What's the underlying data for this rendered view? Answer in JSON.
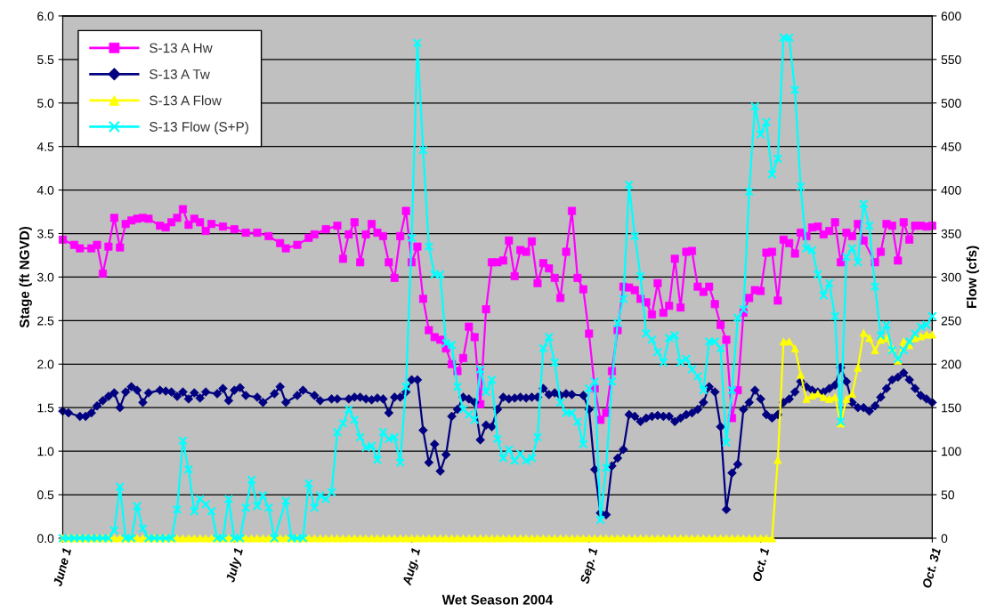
{
  "chart_data": {
    "type": "line",
    "xlabel": "Wet Season 2004",
    "ylabel": "Stage (ft NGVD)",
    "y2label": "Flow (cfs)",
    "xlim": [
      "2004-06-01",
      "2004-10-31"
    ],
    "xticks": [
      {
        "value": "2004-06-01",
        "label": "June 1"
      },
      {
        "value": "2004-07-01",
        "label": "July 1"
      },
      {
        "value": "2004-08-01",
        "label": "Aug. 1"
      },
      {
        "value": "2004-09-01",
        "label": "Sep. 1"
      },
      {
        "value": "2004-10-01",
        "label": "Oct. 1"
      },
      {
        "value": "2004-10-31",
        "label": "Oct. 31"
      }
    ],
    "ylim": [
      0,
      6
    ],
    "yticks": [
      {
        "value": 0,
        "label": "0.0"
      },
      {
        "value": 0.5,
        "label": "0.5"
      },
      {
        "value": 1,
        "label": "1.0"
      },
      {
        "value": 1.5,
        "label": "1.5"
      },
      {
        "value": 2,
        "label": "2.0"
      },
      {
        "value": 2.5,
        "label": "2.5"
      },
      {
        "value": 3,
        "label": "3.0"
      },
      {
        "value": 3.5,
        "label": "3.5"
      },
      {
        "value": 4,
        "label": "4.0"
      },
      {
        "value": 4.5,
        "label": "4.5"
      },
      {
        "value": 5,
        "label": "5.0"
      },
      {
        "value": 5.5,
        "label": "5.5"
      },
      {
        "value": 6,
        "label": "6.0"
      }
    ],
    "y2lim": [
      0,
      600
    ],
    "y2ticks": [
      0,
      50,
      100,
      150,
      200,
      250,
      300,
      350,
      400,
      450,
      500,
      550,
      600
    ],
    "grid": "y",
    "legend": "top left",
    "line_style": "solid",
    "series": [
      {
        "name": "S-13 A Hw",
        "color": "#ff00ff",
        "marker": "square",
        "x": [
          "2004-06-01",
          "2004-06-03",
          "2004-06-04",
          "2004-06-06",
          "2004-06-07",
          "2004-06-08",
          "2004-06-09",
          "2004-06-10",
          "2004-06-11",
          "2004-06-12",
          "2004-06-13",
          "2004-06-14",
          "2004-06-15",
          "2004-06-16",
          "2004-06-18",
          "2004-06-19",
          "2004-06-20",
          "2004-06-21",
          "2004-06-22",
          "2004-06-23",
          "2004-06-24",
          "2004-06-25",
          "2004-06-26",
          "2004-06-27",
          "2004-06-29",
          "2004-07-01",
          "2004-07-03",
          "2004-07-05",
          "2004-07-07",
          "2004-07-09",
          "2004-07-10",
          "2004-07-12",
          "2004-07-14",
          "2004-07-15",
          "2004-07-17",
          "2004-07-19",
          "2004-07-20",
          "2004-07-21",
          "2004-07-22",
          "2004-07-23",
          "2004-07-24",
          "2004-07-25",
          "2004-07-26",
          "2004-07-27",
          "2004-07-28",
          "2004-07-29",
          "2004-07-30",
          "2004-07-31",
          "2004-08-01",
          "2004-08-02",
          "2004-08-03",
          "2004-08-04",
          "2004-08-05",
          "2004-08-06",
          "2004-08-07",
          "2004-08-08",
          "2004-08-09",
          "2004-08-10",
          "2004-08-11",
          "2004-08-12",
          "2004-08-13",
          "2004-08-14",
          "2004-08-15",
          "2004-08-16",
          "2004-08-17",
          "2004-08-18",
          "2004-08-19",
          "2004-08-20",
          "2004-08-21",
          "2004-08-22",
          "2004-08-23",
          "2004-08-24",
          "2004-08-25",
          "2004-08-26",
          "2004-08-27",
          "2004-08-28",
          "2004-08-29",
          "2004-08-30",
          "2004-08-31",
          "2004-09-01",
          "2004-09-02",
          "2004-09-03",
          "2004-09-04",
          "2004-09-05",
          "2004-09-06",
          "2004-09-07",
          "2004-09-08",
          "2004-09-09",
          "2004-09-10",
          "2004-09-11",
          "2004-09-12",
          "2004-09-13",
          "2004-09-14",
          "2004-09-15",
          "2004-09-16",
          "2004-09-17",
          "2004-09-18",
          "2004-09-19",
          "2004-09-20",
          "2004-09-21",
          "2004-09-22",
          "2004-09-23",
          "2004-09-24",
          "2004-09-25",
          "2004-09-26",
          "2004-09-27",
          "2004-09-28",
          "2004-09-29",
          "2004-09-30",
          "2004-10-01",
          "2004-10-02",
          "2004-10-03",
          "2004-10-04",
          "2004-10-05",
          "2004-10-06",
          "2004-10-07",
          "2004-10-08",
          "2004-10-09",
          "2004-10-10",
          "2004-10-11",
          "2004-10-12",
          "2004-10-13",
          "2004-10-14",
          "2004-10-15",
          "2004-10-16",
          "2004-10-17",
          "2004-10-18",
          "2004-10-19",
          "2004-10-21",
          "2004-10-22",
          "2004-10-23",
          "2004-10-24",
          "2004-10-25",
          "2004-10-26",
          "2004-10-27",
          "2004-10-28",
          "2004-10-29",
          "2004-10-30",
          "2004-10-31"
        ],
        "values": [
          3.43,
          3.37,
          3.33,
          3.33,
          3.37,
          3.04,
          3.35,
          3.68,
          3.34,
          3.61,
          3.65,
          3.67,
          3.68,
          3.67,
          3.59,
          3.57,
          3.63,
          3.68,
          3.78,
          3.6,
          3.67,
          3.63,
          3.53,
          3.61,
          3.58,
          3.55,
          3.51,
          3.51,
          3.47,
          3.39,
          3.33,
          3.37,
          3.45,
          3.49,
          3.55,
          3.59,
          3.21,
          3.49,
          3.63,
          3.17,
          3.49,
          3.61,
          3.51,
          3.47,
          3.17,
          2.99,
          3.47,
          3.76,
          3.17,
          3.35,
          2.75,
          2.39,
          2.31,
          2.28,
          2.18,
          2.0,
          1.92,
          2.07,
          2.43,
          2.31,
          1.54,
          2.63,
          3.17,
          3.17,
          3.19,
          3.42,
          3.01,
          3.31,
          3.29,
          3.41,
          2.93,
          3.16,
          3.1,
          2.99,
          2.76,
          3.29,
          3.76,
          2.99,
          2.86,
          2.35,
          1.72,
          1.36,
          1.44,
          1.92,
          2.39,
          2.89,
          2.88,
          2.85,
          2.75,
          2.71,
          2.57,
          2.93,
          2.59,
          2.67,
          3.21,
          2.65,
          3.29,
          3.3,
          2.89,
          2.83,
          2.89,
          2.69,
          2.45,
          2.28,
          1.38,
          1.7,
          2.59,
          2.76,
          2.85,
          2.84,
          3.28,
          3.29,
          2.73,
          3.43,
          3.39,
          3.27,
          3.51,
          3.47,
          3.57,
          3.58,
          3.49,
          3.53,
          3.63,
          3.17,
          3.51,
          3.47,
          3.61,
          3.42,
          3.17,
          3.29,
          3.61,
          3.59,
          3.19,
          3.63,
          3.43,
          3.59,
          3.59,
          3.58,
          3.59
        ]
      },
      {
        "name": "S-13 A Tw",
        "color": "#000080",
        "marker": "diamond",
        "x": [
          "2004-06-01",
          "2004-06-02",
          "2004-06-04",
          "2004-06-05",
          "2004-06-06",
          "2004-06-07",
          "2004-06-08",
          "2004-06-09",
          "2004-06-10",
          "2004-06-11",
          "2004-06-12",
          "2004-06-13",
          "2004-06-14",
          "2004-06-15",
          "2004-06-16",
          "2004-06-18",
          "2004-06-19",
          "2004-06-20",
          "2004-06-21",
          "2004-06-22",
          "2004-06-23",
          "2004-06-24",
          "2004-06-25",
          "2004-06-26",
          "2004-06-28",
          "2004-06-29",
          "2004-06-30",
          "2004-07-01",
          "2004-07-02",
          "2004-07-03",
          "2004-07-05",
          "2004-07-06",
          "2004-07-08",
          "2004-07-09",
          "2004-07-10",
          "2004-07-12",
          "2004-07-13",
          "2004-07-15",
          "2004-07-16",
          "2004-07-18",
          "2004-07-19",
          "2004-07-21",
          "2004-07-22",
          "2004-07-23",
          "2004-07-24",
          "2004-07-25",
          "2004-07-26",
          "2004-07-27",
          "2004-07-28",
          "2004-07-29",
          "2004-07-30",
          "2004-07-31",
          "2004-08-01",
          "2004-08-02",
          "2004-08-03",
          "2004-08-04",
          "2004-08-05",
          "2004-08-06",
          "2004-08-07",
          "2004-08-08",
          "2004-08-09",
          "2004-08-10",
          "2004-08-11",
          "2004-08-12",
          "2004-08-13",
          "2004-08-14",
          "2004-08-15",
          "2004-08-16",
          "2004-08-17",
          "2004-08-18",
          "2004-08-19",
          "2004-08-20",
          "2004-08-21",
          "2004-08-22",
          "2004-08-23",
          "2004-08-24",
          "2004-08-25",
          "2004-08-26",
          "2004-08-27",
          "2004-08-28",
          "2004-08-29",
          "2004-08-31",
          "2004-09-01",
          "2004-09-02",
          "2004-09-03",
          "2004-09-04",
          "2004-09-05",
          "2004-09-06",
          "2004-09-07",
          "2004-09-08",
          "2004-09-09",
          "2004-09-10",
          "2004-09-11",
          "2004-09-12",
          "2004-09-13",
          "2004-09-14",
          "2004-09-15",
          "2004-09-16",
          "2004-09-17",
          "2004-09-18",
          "2004-09-19",
          "2004-09-20",
          "2004-09-21",
          "2004-09-22",
          "2004-09-23",
          "2004-09-24",
          "2004-09-25",
          "2004-09-26",
          "2004-09-27",
          "2004-09-28",
          "2004-09-29",
          "2004-09-30",
          "2004-10-01",
          "2004-10-02",
          "2004-10-03",
          "2004-10-04",
          "2004-10-05",
          "2004-10-06",
          "2004-10-07",
          "2004-10-08",
          "2004-10-09",
          "2004-10-10",
          "2004-10-11",
          "2004-10-12",
          "2004-10-13",
          "2004-10-14",
          "2004-10-15",
          "2004-10-16",
          "2004-10-17",
          "2004-10-18",
          "2004-10-19",
          "2004-10-20",
          "2004-10-21",
          "2004-10-22",
          "2004-10-23",
          "2004-10-24",
          "2004-10-25",
          "2004-10-26",
          "2004-10-27",
          "2004-10-28",
          "2004-10-29",
          "2004-10-30",
          "2004-10-31"
        ],
        "values": [
          1.46,
          1.44,
          1.4,
          1.4,
          1.44,
          1.52,
          1.58,
          1.63,
          1.67,
          1.5,
          1.68,
          1.74,
          1.7,
          1.56,
          1.67,
          1.7,
          1.69,
          1.68,
          1.63,
          1.68,
          1.6,
          1.67,
          1.61,
          1.68,
          1.66,
          1.72,
          1.58,
          1.7,
          1.73,
          1.64,
          1.62,
          1.56,
          1.66,
          1.74,
          1.56,
          1.64,
          1.7,
          1.64,
          1.58,
          1.6,
          1.6,
          1.6,
          1.62,
          1.62,
          1.6,
          1.59,
          1.61,
          1.6,
          1.44,
          1.62,
          1.62,
          1.68,
          1.82,
          1.82,
          1.24,
          0.87,
          1.08,
          0.77,
          0.96,
          1.4,
          1.48,
          1.62,
          1.6,
          1.56,
          1.13,
          1.3,
          1.28,
          1.48,
          1.62,
          1.6,
          1.61,
          1.62,
          1.61,
          1.62,
          1.62,
          1.72,
          1.65,
          1.67,
          1.64,
          1.66,
          1.65,
          1.64,
          1.48,
          0.79,
          0.29,
          0.27,
          0.83,
          0.92,
          1.02,
          1.42,
          1.4,
          1.34,
          1.38,
          1.4,
          1.41,
          1.4,
          1.4,
          1.34,
          1.38,
          1.42,
          1.44,
          1.48,
          1.56,
          1.74,
          1.68,
          1.28,
          0.33,
          0.75,
          0.85,
          1.48,
          1.56,
          1.7,
          1.6,
          1.42,
          1.38,
          1.42,
          1.56,
          1.6,
          1.68,
          1.8,
          1.74,
          1.7,
          1.68,
          1.68,
          1.72,
          1.76,
          1.96,
          1.8,
          1.56,
          1.5,
          1.5,
          1.46,
          1.52,
          1.62,
          1.72,
          1.82,
          1.85,
          1.9,
          1.82,
          1.72,
          1.64,
          1.6,
          1.56
        ]
      },
      {
        "name": "S-13 A Flow",
        "color": "#ffff00",
        "marker": "triangle",
        "axis": "y2",
        "x": [
          "2004-06-01",
          "2004-06-02",
          "2004-06-03",
          "2004-06-04",
          "2004-06-05",
          "2004-06-06",
          "2004-06-07",
          "2004-06-08",
          "2004-06-09",
          "2004-06-10",
          "2004-06-11",
          "2004-06-12",
          "2004-06-13",
          "2004-06-14",
          "2004-06-15",
          "2004-06-16",
          "2004-06-17",
          "2004-06-18",
          "2004-06-19",
          "2004-06-20",
          "2004-06-21",
          "2004-06-22",
          "2004-06-23",
          "2004-06-24",
          "2004-06-25",
          "2004-06-26",
          "2004-06-27",
          "2004-06-28",
          "2004-06-29",
          "2004-06-30",
          "2004-07-01",
          "2004-07-02",
          "2004-07-03",
          "2004-07-04",
          "2004-07-05",
          "2004-07-06",
          "2004-07-07",
          "2004-07-08",
          "2004-07-09",
          "2004-07-10",
          "2004-07-11",
          "2004-07-12",
          "2004-07-13",
          "2004-07-14",
          "2004-07-15",
          "2004-07-16",
          "2004-07-17",
          "2004-07-18",
          "2004-07-19",
          "2004-07-20",
          "2004-07-21",
          "2004-07-22",
          "2004-07-23",
          "2004-07-24",
          "2004-07-25",
          "2004-07-26",
          "2004-07-27",
          "2004-07-28",
          "2004-07-29",
          "2004-07-30",
          "2004-07-31",
          "2004-08-01",
          "2004-08-02",
          "2004-08-03",
          "2004-08-04",
          "2004-08-05",
          "2004-08-06",
          "2004-08-07",
          "2004-08-08",
          "2004-08-09",
          "2004-08-10",
          "2004-08-11",
          "2004-08-12",
          "2004-08-13",
          "2004-08-14",
          "2004-08-15",
          "2004-08-16",
          "2004-08-17",
          "2004-08-18",
          "2004-08-19",
          "2004-08-20",
          "2004-08-21",
          "2004-08-22",
          "2004-08-23",
          "2004-08-24",
          "2004-08-25",
          "2004-08-26",
          "2004-08-27",
          "2004-08-28",
          "2004-08-29",
          "2004-08-30",
          "2004-08-31",
          "2004-09-01",
          "2004-09-02",
          "2004-09-03",
          "2004-09-04",
          "2004-09-05",
          "2004-09-06",
          "2004-09-07",
          "2004-09-08",
          "2004-09-09",
          "2004-09-10",
          "2004-09-11",
          "2004-09-12",
          "2004-09-13",
          "2004-09-14",
          "2004-09-15",
          "2004-09-16",
          "2004-09-17",
          "2004-09-18",
          "2004-09-19",
          "2004-09-20",
          "2004-09-21",
          "2004-09-22",
          "2004-09-23",
          "2004-09-24",
          "2004-09-25",
          "2004-09-26",
          "2004-09-27",
          "2004-09-28",
          "2004-09-29",
          "2004-09-30",
          "2004-10-01",
          "2004-10-02",
          "2004-10-03",
          "2004-10-04",
          "2004-10-05",
          "2004-10-06",
          "2004-10-07",
          "2004-10-08",
          "2004-10-09",
          "2004-10-10",
          "2004-10-11",
          "2004-10-12",
          "2004-10-13",
          "2004-10-14",
          "2004-10-15",
          "2004-10-16",
          "2004-10-17",
          "2004-10-18",
          "2004-10-19",
          "2004-10-20",
          "2004-10-21",
          "2004-10-22",
          "2004-10-23",
          "2004-10-24",
          "2004-10-25",
          "2004-10-26",
          "2004-10-27",
          "2004-10-28",
          "2004-10-29",
          "2004-10-30",
          "2004-10-31"
        ],
        "values": [
          0,
          0,
          0,
          0,
          0,
          0,
          0,
          0,
          0,
          0,
          0,
          0,
          0,
          0,
          0,
          0,
          0,
          0,
          0,
          0,
          0,
          0,
          0,
          0,
          0,
          0,
          0,
          0,
          0,
          0,
          0,
          0,
          0,
          0,
          0,
          0,
          0,
          0,
          0,
          0,
          0,
          0,
          0,
          0,
          0,
          0,
          0,
          0,
          0,
          0,
          0,
          0,
          0,
          0,
          0,
          0,
          0,
          0,
          0,
          0,
          0,
          0,
          0,
          0,
          0,
          0,
          0,
          0,
          0,
          0,
          0,
          0,
          0,
          0,
          0,
          0,
          0,
          0,
          0,
          0,
          0,
          0,
          0,
          0,
          0,
          0,
          0,
          0,
          0,
          0,
          0,
          0,
          0,
          0,
          0,
          0,
          0,
          0,
          0,
          0,
          0,
          0,
          0,
          0,
          0,
          0,
          0,
          0,
          0,
          0,
          0,
          0,
          0,
          0,
          0,
          0,
          0,
          0,
          0,
          0,
          0,
          0,
          0,
          0,
          0,
          90,
          226,
          226,
          218,
          188,
          160,
          164,
          166,
          162,
          160,
          162,
          132,
          160,
          166,
          196,
          236,
          230,
          216,
          228,
          230,
          218,
          204,
          226,
          222,
          230,
          232,
          234,
          234
        ]
      },
      {
        "name": "S-13 Flow (S+P)",
        "color": "#00ffff",
        "marker": "cross",
        "axis": "y2",
        "x": [
          "2004-06-01",
          "2004-06-02",
          "2004-06-03",
          "2004-06-04",
          "2004-06-05",
          "2004-06-06",
          "2004-06-07",
          "2004-06-08",
          "2004-06-09",
          "2004-06-10",
          "2004-06-11",
          "2004-06-12",
          "2004-06-13",
          "2004-06-14",
          "2004-06-15",
          "2004-06-16",
          "2004-06-17",
          "2004-06-18",
          "2004-06-19",
          "2004-06-20",
          "2004-06-21",
          "2004-06-22",
          "2004-06-23",
          "2004-06-24",
          "2004-06-25",
          "2004-06-26",
          "2004-06-27",
          "2004-06-28",
          "2004-06-29",
          "2004-06-30",
          "2004-07-01",
          "2004-07-02",
          "2004-07-03",
          "2004-07-04",
          "2004-07-05",
          "2004-07-06",
          "2004-07-07",
          "2004-07-08",
          "2004-07-10",
          "2004-07-11",
          "2004-07-12",
          "2004-07-13",
          "2004-07-14",
          "2004-07-15",
          "2004-07-16",
          "2004-07-17",
          "2004-07-18",
          "2004-07-19",
          "2004-07-20",
          "2004-07-21",
          "2004-07-22",
          "2004-07-23",
          "2004-07-24",
          "2004-07-25",
          "2004-07-26",
          "2004-07-27",
          "2004-07-28",
          "2004-07-29",
          "2004-07-30",
          "2004-07-31",
          "2004-08-01",
          "2004-08-02",
          "2004-08-03",
          "2004-08-04",
          "2004-08-05",
          "2004-08-06",
          "2004-08-07",
          "2004-08-08",
          "2004-08-09",
          "2004-08-10",
          "2004-08-11",
          "2004-08-12",
          "2004-08-13",
          "2004-08-14",
          "2004-08-15",
          "2004-08-16",
          "2004-08-17",
          "2004-08-18",
          "2004-08-19",
          "2004-08-20",
          "2004-08-21",
          "2004-08-22",
          "2004-08-23",
          "2004-08-24",
          "2004-08-25",
          "2004-08-26",
          "2004-08-27",
          "2004-08-28",
          "2004-08-29",
          "2004-08-30",
          "2004-08-31",
          "2004-09-01",
          "2004-09-02",
          "2004-09-03",
          "2004-09-04",
          "2004-09-05",
          "2004-09-06",
          "2004-09-07",
          "2004-09-08",
          "2004-09-09",
          "2004-09-10",
          "2004-09-11",
          "2004-09-12",
          "2004-09-13",
          "2004-09-14",
          "2004-09-15",
          "2004-09-16",
          "2004-09-17",
          "2004-09-18",
          "2004-09-19",
          "2004-09-20",
          "2004-09-21",
          "2004-09-22",
          "2004-09-23",
          "2004-09-24",
          "2004-09-25",
          "2004-09-26",
          "2004-09-27",
          "2004-09-28",
          "2004-09-29",
          "2004-09-30",
          "2004-10-01",
          "2004-10-02",
          "2004-10-03",
          "2004-10-04",
          "2004-10-05",
          "2004-10-06",
          "2004-10-07",
          "2004-10-08",
          "2004-10-09",
          "2004-10-10",
          "2004-10-11",
          "2004-10-12",
          "2004-10-13",
          "2004-10-14",
          "2004-10-15",
          "2004-10-16",
          "2004-10-17",
          "2004-10-18",
          "2004-10-19",
          "2004-10-20",
          "2004-10-21",
          "2004-10-22",
          "2004-10-23",
          "2004-10-24",
          "2004-10-25",
          "2004-10-26",
          "2004-10-27",
          "2004-10-28",
          "2004-10-29",
          "2004-10-30",
          "2004-10-31"
        ],
        "values": [
          0,
          0,
          0,
          0,
          0,
          0,
          0,
          0,
          0,
          9,
          59,
          0,
          0,
          37,
          11,
          0,
          0,
          0,
          0,
          0,
          33,
          112,
          79,
          31,
          45,
          39,
          31,
          0,
          0,
          45,
          0,
          0,
          35,
          67,
          37,
          49,
          35,
          0,
          43,
          0,
          0,
          0,
          63,
          35,
          49,
          45,
          53,
          122,
          132,
          148,
          136,
          116,
          104,
          106,
          90,
          122,
          114,
          116,
          87,
          174,
          345,
          569,
          446,
          335,
          303,
          303,
          224,
          222,
          174,
          148,
          142,
          136,
          194,
          168,
          182,
          114,
          92,
          102,
          89,
          97,
          89,
          92,
          116,
          218,
          231,
          202,
          156,
          144,
          144,
          134,
          108,
          172,
          180,
          21,
          81,
          180,
          247,
          275,
          406,
          347,
          301,
          235,
          228,
          214,
          202,
          230,
          233,
          202,
          206,
          194,
          186,
          170,
          226,
          226,
          218,
          110,
          170,
          253,
          263,
          398,
          496,
          464,
          478,
          418,
          436,
          575,
          575,
          515,
          404,
          333,
          331,
          303,
          279,
          293,
          255,
          134,
          323,
          333,
          317,
          384,
          359,
          289,
          233,
          245,
          216,
          206,
          216,
          226,
          235,
          243,
          245,
          255
        ]
      }
    ]
  }
}
